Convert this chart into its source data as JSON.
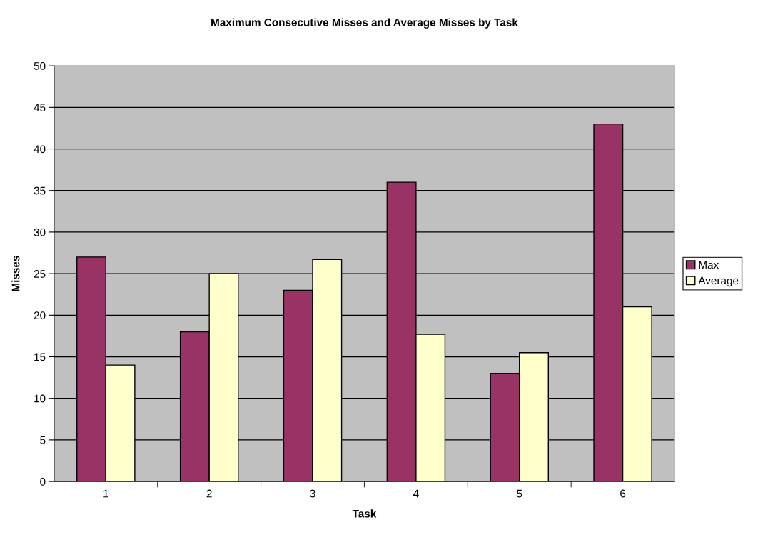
{
  "chart_data": {
    "type": "bar",
    "title": "Maximum Consecutive Misses and Average Misses by Task",
    "xlabel": "Task",
    "ylabel": "Misses",
    "categories": [
      "1",
      "2",
      "3",
      "4",
      "5",
      "6"
    ],
    "series": [
      {
        "name": "Max",
        "color": "#993366",
        "values": [
          27,
          18,
          23,
          36,
          13,
          43
        ]
      },
      {
        "name": "Average",
        "color": "#ffffcc",
        "values": [
          14,
          25,
          26.7,
          17.7,
          15.5,
          21
        ]
      }
    ],
    "ylim": [
      0,
      50
    ],
    "yticks": [
      0,
      5,
      10,
      15,
      20,
      25,
      30,
      35,
      40,
      45,
      50
    ],
    "grid": "y",
    "legend": "right"
  }
}
